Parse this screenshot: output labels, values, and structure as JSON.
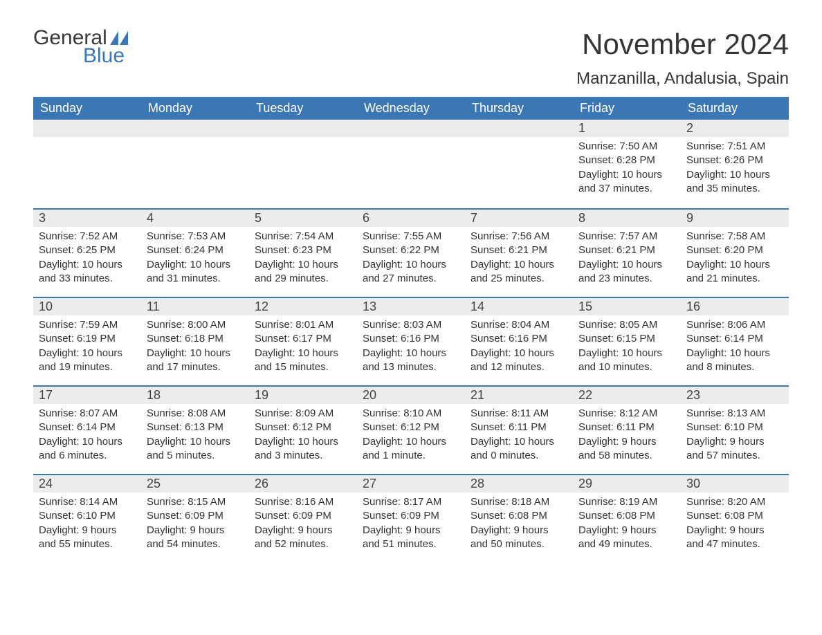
{
  "logo": {
    "text1": "General",
    "text2": "Blue"
  },
  "title": "November 2024",
  "location": "Manzanilla, Andalusia, Spain",
  "colors": {
    "header_bg": "#3b76b5",
    "header_text": "#ffffff",
    "daybar_bg": "#ececec",
    "daybar_border": "#3b76b5",
    "body_text": "#333333",
    "title_text": "#353535"
  },
  "columns": [
    "Sunday",
    "Monday",
    "Tuesday",
    "Wednesday",
    "Thursday",
    "Friday",
    "Saturday"
  ],
  "weeks": [
    [
      {
        "day": "",
        "sunrise": "",
        "sunset": "",
        "daylight1": "",
        "daylight2": ""
      },
      {
        "day": "",
        "sunrise": "",
        "sunset": "",
        "daylight1": "",
        "daylight2": ""
      },
      {
        "day": "",
        "sunrise": "",
        "sunset": "",
        "daylight1": "",
        "daylight2": ""
      },
      {
        "day": "",
        "sunrise": "",
        "sunset": "",
        "daylight1": "",
        "daylight2": ""
      },
      {
        "day": "",
        "sunrise": "",
        "sunset": "",
        "daylight1": "",
        "daylight2": ""
      },
      {
        "day": "1",
        "sunrise": "Sunrise: 7:50 AM",
        "sunset": "Sunset: 6:28 PM",
        "daylight1": "Daylight: 10 hours",
        "daylight2": "and 37 minutes."
      },
      {
        "day": "2",
        "sunrise": "Sunrise: 7:51 AM",
        "sunset": "Sunset: 6:26 PM",
        "daylight1": "Daylight: 10 hours",
        "daylight2": "and 35 minutes."
      }
    ],
    [
      {
        "day": "3",
        "sunrise": "Sunrise: 7:52 AM",
        "sunset": "Sunset: 6:25 PM",
        "daylight1": "Daylight: 10 hours",
        "daylight2": "and 33 minutes."
      },
      {
        "day": "4",
        "sunrise": "Sunrise: 7:53 AM",
        "sunset": "Sunset: 6:24 PM",
        "daylight1": "Daylight: 10 hours",
        "daylight2": "and 31 minutes."
      },
      {
        "day": "5",
        "sunrise": "Sunrise: 7:54 AM",
        "sunset": "Sunset: 6:23 PM",
        "daylight1": "Daylight: 10 hours",
        "daylight2": "and 29 minutes."
      },
      {
        "day": "6",
        "sunrise": "Sunrise: 7:55 AM",
        "sunset": "Sunset: 6:22 PM",
        "daylight1": "Daylight: 10 hours",
        "daylight2": "and 27 minutes."
      },
      {
        "day": "7",
        "sunrise": "Sunrise: 7:56 AM",
        "sunset": "Sunset: 6:21 PM",
        "daylight1": "Daylight: 10 hours",
        "daylight2": "and 25 minutes."
      },
      {
        "day": "8",
        "sunrise": "Sunrise: 7:57 AM",
        "sunset": "Sunset: 6:21 PM",
        "daylight1": "Daylight: 10 hours",
        "daylight2": "and 23 minutes."
      },
      {
        "day": "9",
        "sunrise": "Sunrise: 7:58 AM",
        "sunset": "Sunset: 6:20 PM",
        "daylight1": "Daylight: 10 hours",
        "daylight2": "and 21 minutes."
      }
    ],
    [
      {
        "day": "10",
        "sunrise": "Sunrise: 7:59 AM",
        "sunset": "Sunset: 6:19 PM",
        "daylight1": "Daylight: 10 hours",
        "daylight2": "and 19 minutes."
      },
      {
        "day": "11",
        "sunrise": "Sunrise: 8:00 AM",
        "sunset": "Sunset: 6:18 PM",
        "daylight1": "Daylight: 10 hours",
        "daylight2": "and 17 minutes."
      },
      {
        "day": "12",
        "sunrise": "Sunrise: 8:01 AM",
        "sunset": "Sunset: 6:17 PM",
        "daylight1": "Daylight: 10 hours",
        "daylight2": "and 15 minutes."
      },
      {
        "day": "13",
        "sunrise": "Sunrise: 8:03 AM",
        "sunset": "Sunset: 6:16 PM",
        "daylight1": "Daylight: 10 hours",
        "daylight2": "and 13 minutes."
      },
      {
        "day": "14",
        "sunrise": "Sunrise: 8:04 AM",
        "sunset": "Sunset: 6:16 PM",
        "daylight1": "Daylight: 10 hours",
        "daylight2": "and 12 minutes."
      },
      {
        "day": "15",
        "sunrise": "Sunrise: 8:05 AM",
        "sunset": "Sunset: 6:15 PM",
        "daylight1": "Daylight: 10 hours",
        "daylight2": "and 10 minutes."
      },
      {
        "day": "16",
        "sunrise": "Sunrise: 8:06 AM",
        "sunset": "Sunset: 6:14 PM",
        "daylight1": "Daylight: 10 hours",
        "daylight2": "and 8 minutes."
      }
    ],
    [
      {
        "day": "17",
        "sunrise": "Sunrise: 8:07 AM",
        "sunset": "Sunset: 6:14 PM",
        "daylight1": "Daylight: 10 hours",
        "daylight2": "and 6 minutes."
      },
      {
        "day": "18",
        "sunrise": "Sunrise: 8:08 AM",
        "sunset": "Sunset: 6:13 PM",
        "daylight1": "Daylight: 10 hours",
        "daylight2": "and 5 minutes."
      },
      {
        "day": "19",
        "sunrise": "Sunrise: 8:09 AM",
        "sunset": "Sunset: 6:12 PM",
        "daylight1": "Daylight: 10 hours",
        "daylight2": "and 3 minutes."
      },
      {
        "day": "20",
        "sunrise": "Sunrise: 8:10 AM",
        "sunset": "Sunset: 6:12 PM",
        "daylight1": "Daylight: 10 hours",
        "daylight2": "and 1 minute."
      },
      {
        "day": "21",
        "sunrise": "Sunrise: 8:11 AM",
        "sunset": "Sunset: 6:11 PM",
        "daylight1": "Daylight: 10 hours",
        "daylight2": "and 0 minutes."
      },
      {
        "day": "22",
        "sunrise": "Sunrise: 8:12 AM",
        "sunset": "Sunset: 6:11 PM",
        "daylight1": "Daylight: 9 hours",
        "daylight2": "and 58 minutes."
      },
      {
        "day": "23",
        "sunrise": "Sunrise: 8:13 AM",
        "sunset": "Sunset: 6:10 PM",
        "daylight1": "Daylight: 9 hours",
        "daylight2": "and 57 minutes."
      }
    ],
    [
      {
        "day": "24",
        "sunrise": "Sunrise: 8:14 AM",
        "sunset": "Sunset: 6:10 PM",
        "daylight1": "Daylight: 9 hours",
        "daylight2": "and 55 minutes."
      },
      {
        "day": "25",
        "sunrise": "Sunrise: 8:15 AM",
        "sunset": "Sunset: 6:09 PM",
        "daylight1": "Daylight: 9 hours",
        "daylight2": "and 54 minutes."
      },
      {
        "day": "26",
        "sunrise": "Sunrise: 8:16 AM",
        "sunset": "Sunset: 6:09 PM",
        "daylight1": "Daylight: 9 hours",
        "daylight2": "and 52 minutes."
      },
      {
        "day": "27",
        "sunrise": "Sunrise: 8:17 AM",
        "sunset": "Sunset: 6:09 PM",
        "daylight1": "Daylight: 9 hours",
        "daylight2": "and 51 minutes."
      },
      {
        "day": "28",
        "sunrise": "Sunrise: 8:18 AM",
        "sunset": "Sunset: 6:08 PM",
        "daylight1": "Daylight: 9 hours",
        "daylight2": "and 50 minutes."
      },
      {
        "day": "29",
        "sunrise": "Sunrise: 8:19 AM",
        "sunset": "Sunset: 6:08 PM",
        "daylight1": "Daylight: 9 hours",
        "daylight2": "and 49 minutes."
      },
      {
        "day": "30",
        "sunrise": "Sunrise: 8:20 AM",
        "sunset": "Sunset: 6:08 PM",
        "daylight1": "Daylight: 9 hours",
        "daylight2": "and 47 minutes."
      }
    ]
  ]
}
